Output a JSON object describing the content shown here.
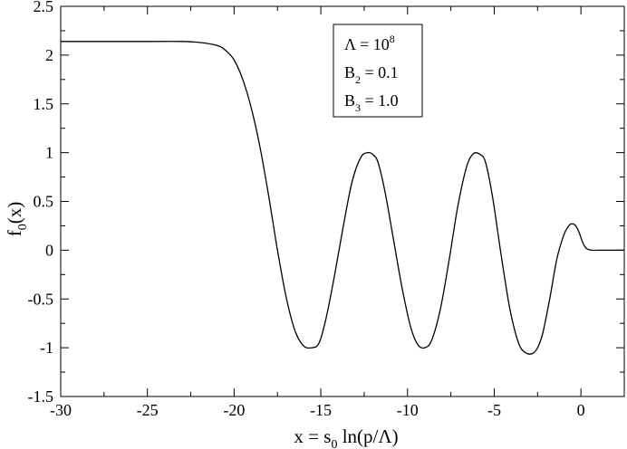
{
  "chart_data": {
    "type": "line",
    "title": "",
    "xlabel": "x = s0 ln(p/Λ)",
    "xlabel_parts": {
      "main": "x = s",
      "sub": "0",
      "rest": " ln(p/Λ)"
    },
    "ylabel": "f0(x)",
    "ylabel_parts": {
      "main": "f",
      "sub": "0",
      "rest": "(x)"
    },
    "xlim": [
      -30,
      2.5
    ],
    "ylim": [
      -1.5,
      2.5
    ],
    "xticks": [
      -30,
      -25,
      -20,
      -15,
      -10,
      -5,
      0
    ],
    "xtick_labels": [
      "-30",
      "-25",
      "-20",
      "-15",
      "-10",
      "-5",
      "0"
    ],
    "yticks": [
      -1.5,
      -1,
      -0.5,
      0,
      0.5,
      1,
      1.5,
      2,
      2.5
    ],
    "ytick_labels": [
      "-1.5",
      "-1",
      "-0.5",
      "0",
      "0.5",
      "1",
      "1.5",
      "2",
      "2.5"
    ],
    "grid": false,
    "legend_placement": "top-center",
    "annotation": {
      "lines": [
        {
          "text": "Λ = 10",
          "sup": "8"
        },
        {
          "text": "B",
          "sub": "2",
          "rest": " = 0.1"
        },
        {
          "text": "B",
          "sub": "3",
          "rest": " = 1.0"
        }
      ]
    },
    "series": [
      {
        "x": [
          -30,
          -25,
          -23,
          -22,
          -21,
          -20.5,
          -20,
          -19.5,
          -19,
          -18.5,
          -18,
          -17.5,
          -17,
          -16.5,
          -16,
          -15.5,
          -15.1,
          -14.7,
          -14.2,
          -13.7,
          -13.2,
          -12.7,
          -12.3,
          -12.0,
          -11.7,
          -11.3,
          -10.8,
          -10.3,
          -9.8,
          -9.4,
          -9.0,
          -8.6,
          -8.1,
          -7.6,
          -7.1,
          -6.6,
          -6.2,
          -5.8,
          -5.5,
          -5.1,
          -4.6,
          -4.1,
          -3.6,
          -3.2,
          -2.8,
          -2.5,
          -2.2,
          -1.8,
          -1.4,
          -1.0,
          -0.7,
          -0.5,
          -0.3,
          -0.1,
          0.1,
          0.3,
          0.6,
          1.0,
          1.5,
          2.0,
          2.5
        ],
        "y": [
          2.14,
          2.14,
          2.14,
          2.13,
          2.1,
          2.05,
          1.95,
          1.75,
          1.45,
          1.05,
          0.55,
          0.0,
          -0.48,
          -0.82,
          -0.98,
          -1.0,
          -0.95,
          -0.7,
          -0.25,
          0.25,
          0.7,
          0.95,
          1.0,
          0.98,
          0.9,
          0.6,
          0.1,
          -0.4,
          -0.8,
          -0.97,
          -1.0,
          -0.92,
          -0.6,
          -0.1,
          0.45,
          0.85,
          0.99,
          0.98,
          0.9,
          0.55,
          -0.05,
          -0.6,
          -0.95,
          -1.05,
          -1.06,
          -1.0,
          -0.85,
          -0.5,
          -0.1,
          0.15,
          0.25,
          0.27,
          0.25,
          0.18,
          0.08,
          0.02,
          0.0,
          0.0,
          0.0,
          0.0,
          0.0
        ]
      }
    ]
  }
}
